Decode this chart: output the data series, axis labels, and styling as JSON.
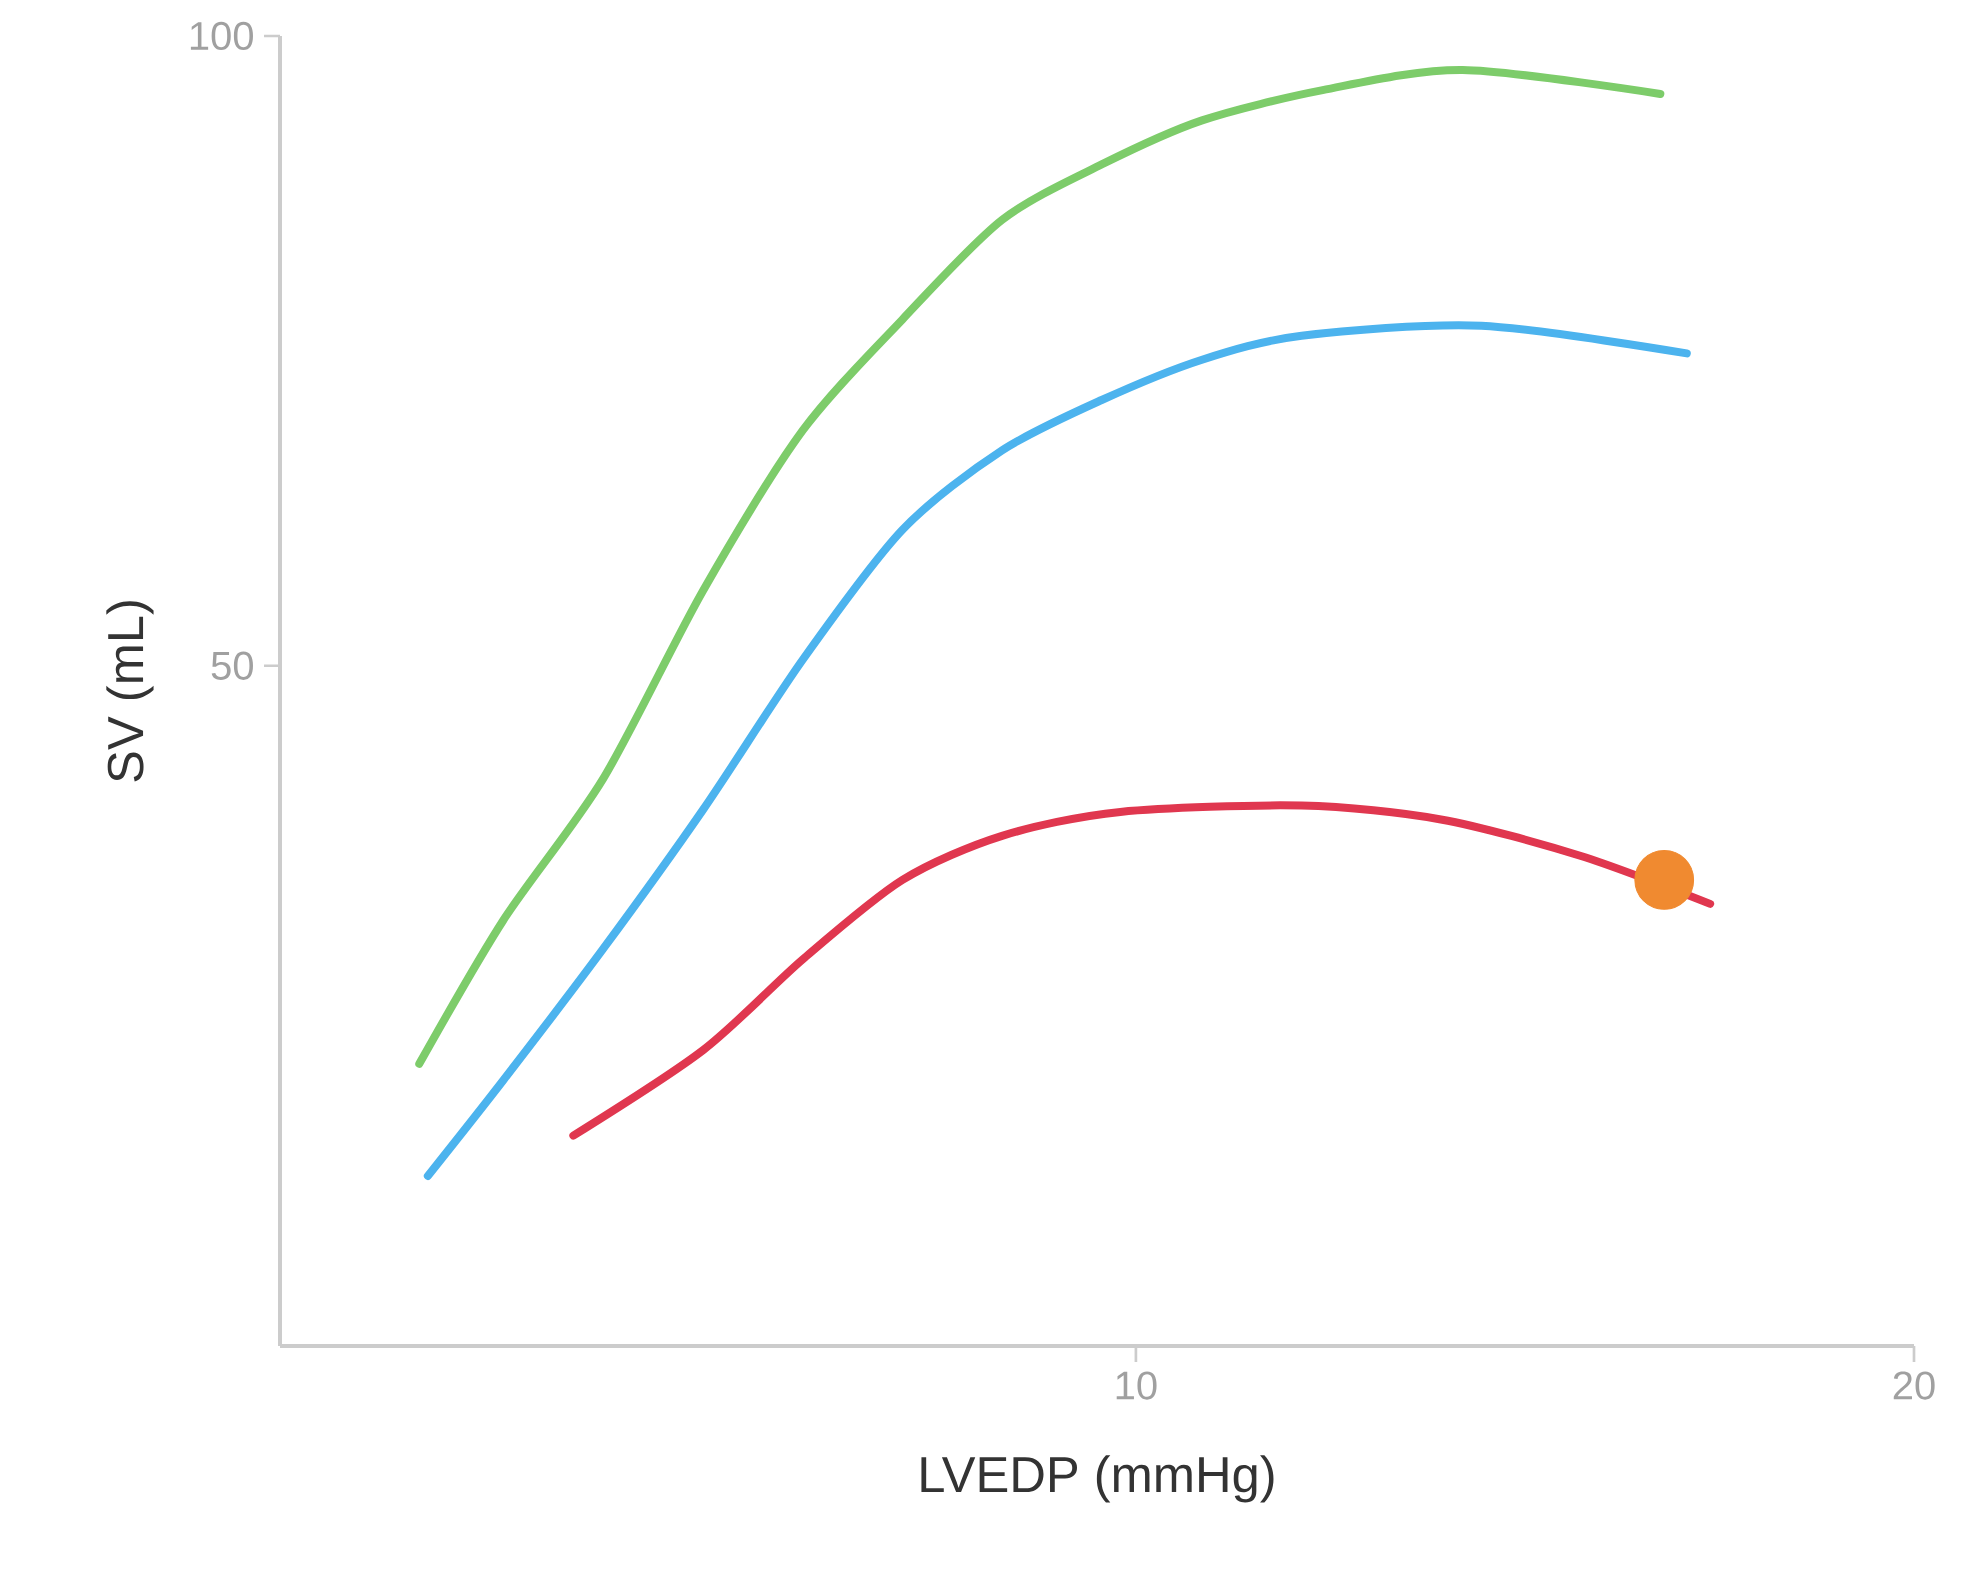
{
  "chart_data": {
    "type": "line",
    "xlabel": "LVEDP (mmHg)",
    "ylabel": "SV (mL)",
    "xlim": [
      -1,
      20
    ],
    "ylim": [
      -4,
      100
    ],
    "xticks": [
      10,
      20
    ],
    "yticks": [
      50,
      100
    ],
    "grid": false,
    "series": [
      {
        "color": "#7dcc6a",
        "x": [
          0.79,
          1.87,
          3.15,
          4.44,
          5.72,
          7,
          8.28,
          9.56,
          10.85,
          12.4,
          14.2,
          16.74
        ],
        "values": [
          18.4,
          29.8,
          41,
          56,
          68.7,
          77.5,
          85.4,
          89.8,
          93.3,
          95.7,
          97.3,
          95.4
        ]
      },
      {
        "color": "#4cb3ee",
        "x": [
          0.9,
          1.87,
          3.15,
          4.44,
          5.72,
          7,
          8.28,
          9.56,
          10.85,
          12.13,
          14.44,
          17.08
        ],
        "values": [
          9.5,
          17.1,
          27.5,
          38.6,
          50.5,
          60.8,
          67.1,
          71.1,
          74.3,
          76.2,
          77,
          74.8
        ]
      },
      {
        "color": "#e0374f",
        "x": [
          2.77,
          4.44,
          5.72,
          7,
          8.28,
          9.8,
          12.13,
          13.92,
          15.72,
          17.38
        ],
        "values": [
          12.7,
          19.5,
          26.7,
          33,
          36.5,
          38.4,
          38.9,
          37.8,
          34.9,
          31.1
        ]
      },
      {
        "type": "scatter",
        "color": "#f08a30",
        "x": [
          16.79
        ],
        "values": [
          33
        ]
      }
    ]
  }
}
